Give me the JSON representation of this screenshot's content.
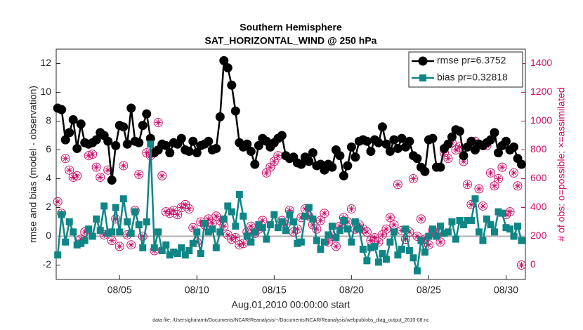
{
  "chart_data": {
    "type": "line",
    "title": "Southern Hemisphere",
    "subtitle": "SAT_HORIZONTAL_WIND @ 250 hPa",
    "ylabel": "rmse and bias (model - observation)",
    "y2label": "# of obs: o=possible; ×=assimilated",
    "xlabel": "Aug.01,2010 00:00:00 start",
    "footnote": "data file: /Users/gharamti/Documents/NCAR/Reanalysis/~/Documents/NCAR/Reanalysis/webpub/obs_diag_output_2010-08.nc",
    "legend": "top-right",
    "xlim": [
      0.9,
      31.25
    ],
    "xticks": [
      {
        "value": 5,
        "label": "08/05"
      },
      {
        "value": 10,
        "label": "08/10"
      },
      {
        "value": 15,
        "label": "08/15"
      },
      {
        "value": 20,
        "label": "08/20"
      },
      {
        "value": 25,
        "label": "08/25"
      },
      {
        "value": 30,
        "label": "08/30"
      }
    ],
    "ylim": [
      -3,
      13
    ],
    "yticks": [
      -2,
      0,
      2,
      4,
      6,
      8,
      10,
      12
    ],
    "y2lim": [
      -100,
      1500
    ],
    "y2ticks": [
      0,
      200,
      400,
      600,
      800,
      1000,
      1200,
      1400
    ],
    "y2color": "#c8106a",
    "reference_line": 0,
    "x": [
      1,
      1.25,
      1.5,
      1.75,
      2,
      2.25,
      2.5,
      2.75,
      3,
      3.25,
      3.5,
      3.75,
      4,
      4.25,
      4.5,
      4.75,
      5,
      5.25,
      5.5,
      5.75,
      6,
      6.25,
      6.5,
      6.75,
      7,
      7.25,
      7.5,
      7.75,
      8,
      8.25,
      8.5,
      8.75,
      9,
      9.25,
      9.5,
      9.75,
      10,
      10.25,
      10.5,
      10.75,
      11,
      11.25,
      11.5,
      11.75,
      12,
      12.25,
      12.5,
      12.75,
      13,
      13.25,
      13.5,
      13.75,
      14,
      14.25,
      14.5,
      14.75,
      15,
      15.25,
      15.5,
      15.75,
      16,
      16.25,
      16.5,
      16.75,
      17,
      17.25,
      17.5,
      17.75,
      18,
      18.25,
      18.5,
      18.75,
      19,
      19.25,
      19.5,
      19.75,
      20,
      20.25,
      20.5,
      20.75,
      21,
      21.25,
      21.5,
      21.75,
      22,
      22.25,
      22.5,
      22.75,
      23,
      23.25,
      23.5,
      23.75,
      24,
      24.25,
      24.5,
      24.75,
      25,
      25.25,
      25.5,
      25.75,
      26,
      26.25,
      26.5,
      26.75,
      27,
      27.25,
      27.5,
      27.75,
      28,
      28.25,
      28.5,
      28.75,
      29,
      29.25,
      29.5,
      29.75,
      30,
      30.25,
      30.5,
      30.75,
      31
    ],
    "series": [
      {
        "name": "rmse pr=6.3752",
        "color": "#000000",
        "marker": "circle",
        "values": [
          8.9,
          8.8,
          6.7,
          7.2,
          8.1,
          6.1,
          7.8,
          6.5,
          6.4,
          6.5,
          6.7,
          7.2,
          7.0,
          6.6,
          3.9,
          6.3,
          7.7,
          7.6,
          6.4,
          8.9,
          6.6,
          6.5,
          7.7,
          8.5,
          6.8,
          5.8,
          6.0,
          6.4,
          6.3,
          5.8,
          6.5,
          6.4,
          6.8,
          6.0,
          5.9,
          6.6,
          5.8,
          6.3,
          6.4,
          6.6,
          6.0,
          6.1,
          8.3,
          12.2,
          11.7,
          10.5,
          8.7,
          6.5,
          6.2,
          6.4,
          5.9,
          5.0,
          6.3,
          6.8,
          6.6,
          6.2,
          6.5,
          6.8,
          7.0,
          5.6,
          5.4,
          5.5,
          5.1,
          5.0,
          5.5,
          5.2,
          5.8,
          4.9,
          5.0,
          4.6,
          5.0,
          4.8,
          6.0,
          5.6,
          4.2,
          4.9,
          6.2,
          5.5,
          6.6,
          6.7,
          6.6,
          5.9,
          6.7,
          6.5,
          7.6,
          6.4,
          5.9,
          6.7,
          6.1,
          6.8,
          6.2,
          6.6,
          5.6,
          5.4,
          4.8,
          4.5,
          6.7,
          6.8,
          4.8,
          4.8,
          6.1,
          6.4,
          6.9,
          7.4,
          7.3,
          5.6,
          6.2,
          6.6,
          6.0,
          6.4,
          6.3,
          6.5,
          6.7,
          7.2,
          5.8,
          6.3,
          6.6,
          6.0,
          6.2,
          5.4,
          5.0
        ]
      },
      {
        "name": "bias pr=0.32818",
        "color": "#108585",
        "marker": "square",
        "values": [
          -1.3,
          1.5,
          -0.4,
          1.0,
          0.3,
          -0.6,
          -0.5,
          -0.3,
          0.5,
          0.0,
          1.2,
          0.4,
          2.1,
          0.2,
          0.3,
          2.0,
          0.3,
          2.6,
          1.0,
          0.2,
          1.7,
          0.8,
          -0.8,
          1.0,
          6.4,
          -0.8,
          0.3,
          -1.0,
          -0.6,
          -1.3,
          -1.1,
          -1.2,
          -0.8,
          -1.3,
          -1.0,
          -0.5,
          0.3,
          -1.2,
          0.9,
          0.3,
          0.5,
          -0.8,
          0.3,
          1.2,
          2.1,
          1.7,
          0.7,
          2.9,
          1.4,
          0.0,
          -0.4,
          0.3,
          0.8,
          0.6,
          -0.2,
          0.8,
          1.5,
          0.6,
          1.0,
          0.4,
          1.5,
          1.0,
          -0.5,
          -0.4,
          1.4,
          2.0,
          1.2,
          -0.3,
          -0.9,
          -0.4,
          0.1,
          0.7,
          -0.1,
          0.4,
          1.1,
          0.5,
          -0.4,
          1.0,
          0.5,
          -0.9,
          -1.7,
          -0.8,
          -0.7,
          -1.8,
          -1.2,
          -1.6,
          -0.4,
          0.3,
          -1.3,
          -0.9,
          0.5,
          -1.0,
          -1.5,
          -2.4,
          -0.3,
          -1.1,
          0.0,
          0.5,
          0.0,
          0.7,
          0.2,
          0.3,
          1.0,
          -0.2,
          1.1,
          0.8,
          1.1,
          1.1,
          2.6,
          0.3,
          -0.3,
          1.2,
          0.8,
          0.3,
          1.7,
          1.6,
          0.6,
          0.5,
          0.0,
          0.7,
          -0.3
        ]
      }
    ],
    "obs": {
      "color": "#c8106a",
      "axis": "y2",
      "values": [
        440,
        360,
        740,
        660,
        610,
        620,
        180,
        230,
        760,
        770,
        680,
        610,
        210,
        660,
        170,
        320,
        130,
        690,
        210,
        140,
        380,
        630,
        200,
        780,
        760,
        100,
        990,
        620,
        370,
        360,
        380,
        350,
        400,
        420,
        390,
        260,
        160,
        300,
        280,
        320,
        290,
        340,
        310,
        270,
        210,
        180,
        190,
        140,
        150,
        230,
        270,
        220,
        250,
        310,
        640,
        680,
        720,
        760,
        310,
        280,
        380,
        230,
        250,
        330,
        390,
        340,
        280,
        250,
        310,
        360,
        160,
        200,
        130,
        270,
        330,
        300,
        390,
        250,
        280,
        250,
        230,
        170,
        190,
        160,
        210,
        250,
        330,
        280,
        560,
        240,
        180,
        230,
        600,
        200,
        320,
        180,
        140,
        240,
        210,
        160,
        780,
        740,
        850,
        800,
        820,
        720,
        560,
        420,
        860,
        530,
        410,
        830,
        640,
        550,
        600,
        680,
        350,
        370,
        640,
        550,
        0
      ]
    }
  }
}
